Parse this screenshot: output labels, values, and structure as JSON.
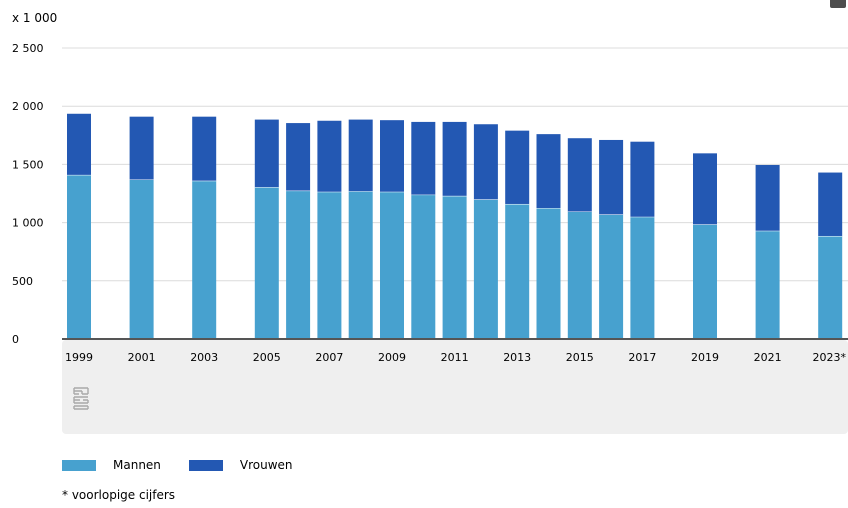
{
  "chart_data": {
    "type": "bar",
    "stacked": true,
    "unit_label": "x 1 000",
    "categories": [
      "1999",
      "2001",
      "2003",
      "2005",
      "2006",
      "2007",
      "2008",
      "2009",
      "2010",
      "2011",
      "2012",
      "2013",
      "2014",
      "2015",
      "2016",
      "2017",
      "2019",
      "2021",
      "2023*"
    ],
    "x_tick_labels": [
      "1999",
      "2001",
      "2003",
      "2005",
      "2007",
      "2009",
      "2011",
      "2013",
      "2015",
      "2017",
      "2019",
      "2021",
      "2023*"
    ],
    "series": [
      {
        "name": "Mannen",
        "color": "#47a1cf",
        "values": [
          1410,
          1370,
          1360,
          1305,
          1275,
          1265,
          1270,
          1265,
          1240,
          1230,
          1200,
          1160,
          1125,
          1095,
          1070,
          1050,
          985,
          930,
          885
        ]
      },
      {
        "name": "Vrouwen",
        "color": "#2358b3",
        "values": [
          525,
          540,
          550,
          580,
          580,
          610,
          615,
          615,
          625,
          635,
          645,
          630,
          635,
          630,
          640,
          645,
          610,
          565,
          545
        ]
      }
    ],
    "ylim": [
      0,
      2500
    ],
    "yticks": [
      0,
      500,
      1000,
      1500,
      2000,
      2500
    ],
    "ytick_labels": [
      "0",
      "500",
      "1 000",
      "1 500",
      "2 000",
      "2 500"
    ],
    "grid": true,
    "legend_position": "bottom-left",
    "footnote": "* voorlopige cijfers"
  }
}
